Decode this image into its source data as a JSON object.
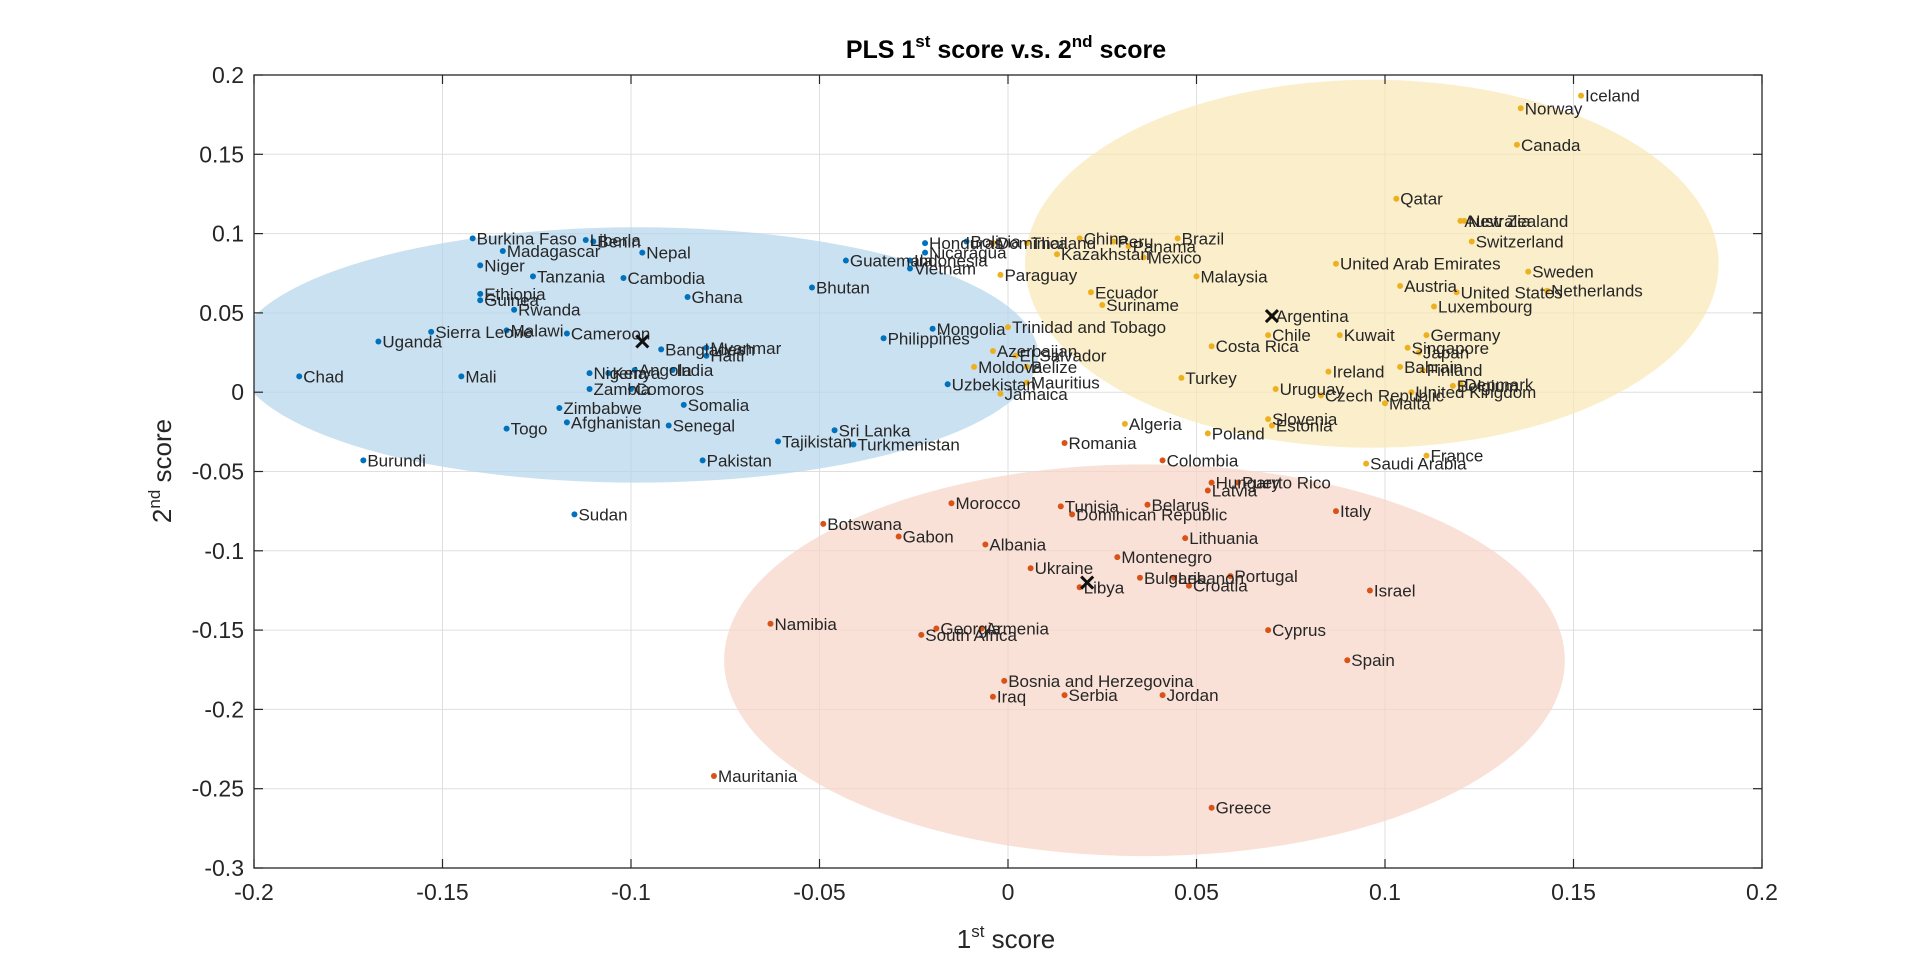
{
  "chart_data": {
    "type": "scatter",
    "title_parts": {
      "pre": "PLS 1",
      "sup1": "st",
      "mid": " score v.s. 2",
      "sup2": "nd",
      "post": " score"
    },
    "xlabel_parts": {
      "pre": "1",
      "sup": "st",
      "post": " score"
    },
    "ylabel_parts": {
      "pre": "2",
      "sup": "nd",
      "post": " score"
    },
    "xlim": [
      -0.2,
      0.2
    ],
    "ylim": [
      -0.3,
      0.2
    ],
    "x_ticks": [
      "-0.2",
      "-0.15",
      "-0.1",
      "-0.05",
      "0",
      "0.05",
      "0.1",
      "0.15",
      "0.2"
    ],
    "y_ticks": [
      "0.2",
      "0.15",
      "0.1",
      "0.05",
      "0",
      "-0.05",
      "-0.1",
      "-0.15",
      "-0.2",
      "-0.25",
      "-0.3"
    ],
    "grid": true,
    "clusters": [
      {
        "color": "#0072bd",
        "ellipse_color": "#b6d6ec",
        "centroid": [
          -0.097,
          0.032
        ],
        "ellipse": {
          "center": [
            -0.0985,
            0.0235
          ],
          "rx": 0.1065,
          "ry": 0.0805
        },
        "points": [
          {
            "label": "Burkina Faso",
            "x": -0.142,
            "y": 0.097
          },
          {
            "label": "Liberia",
            "x": -0.112,
            "y": 0.096
          },
          {
            "label": "Benin",
            "x": -0.11,
            "y": 0.095
          },
          {
            "label": "Madagascar",
            "x": -0.134,
            "y": 0.089
          },
          {
            "label": "Nepal",
            "x": -0.097,
            "y": 0.088
          },
          {
            "label": "Niger",
            "x": -0.14,
            "y": 0.08
          },
          {
            "label": "Tanzania",
            "x": -0.126,
            "y": 0.073
          },
          {
            "label": "Cambodia",
            "x": -0.102,
            "y": 0.072
          },
          {
            "label": "Ethiopia",
            "x": -0.14,
            "y": 0.062
          },
          {
            "label": "Ghana",
            "x": -0.085,
            "y": 0.06
          },
          {
            "label": "Guinea",
            "x": -0.14,
            "y": 0.058
          },
          {
            "label": "Rwanda",
            "x": -0.131,
            "y": 0.052
          },
          {
            "label": "Bhutan",
            "x": -0.052,
            "y": 0.066
          },
          {
            "label": "Malawi",
            "x": -0.133,
            "y": 0.039
          },
          {
            "label": "Sierra Leone",
            "x": -0.153,
            "y": 0.038
          },
          {
            "label": "Cameroon",
            "x": -0.117,
            "y": 0.037
          },
          {
            "label": "Uganda",
            "x": -0.167,
            "y": 0.032
          },
          {
            "label": "Bangladesh",
            "x": -0.092,
            "y": 0.027
          },
          {
            "label": "Myanmar",
            "x": -0.08,
            "y": 0.028
          },
          {
            "label": "Haiti",
            "x": -0.08,
            "y": 0.023
          },
          {
            "label": "Chad",
            "x": -0.188,
            "y": 0.01
          },
          {
            "label": "Mali",
            "x": -0.145,
            "y": 0.01
          },
          {
            "label": "Nigeria",
            "x": -0.111,
            "y": 0.012
          },
          {
            "label": "Kenya",
            "x": -0.106,
            "y": 0.012
          },
          {
            "label": "Angola",
            "x": -0.099,
            "y": 0.014
          },
          {
            "label": "India",
            "x": -0.089,
            "y": 0.014
          },
          {
            "label": "Zambia",
            "x": -0.111,
            "y": 0.002
          },
          {
            "label": "Comoros",
            "x": -0.1,
            "y": 0.002
          },
          {
            "label": "Somalia",
            "x": -0.086,
            "y": -0.008
          },
          {
            "label": "Zimbabwe",
            "x": -0.119,
            "y": -0.01
          },
          {
            "label": "Afghanistan",
            "x": -0.117,
            "y": -0.019
          },
          {
            "label": "Senegal",
            "x": -0.09,
            "y": -0.021
          },
          {
            "label": "Togo",
            "x": -0.133,
            "y": -0.023
          },
          {
            "label": "Burundi",
            "x": -0.171,
            "y": -0.043
          },
          {
            "label": "Pakistan",
            "x": -0.081,
            "y": -0.043
          },
          {
            "label": "Sudan",
            "x": -0.115,
            "y": -0.077
          },
          {
            "label": "Guatemala",
            "x": -0.043,
            "y": 0.083
          },
          {
            "label": "Indonesia",
            "x": -0.026,
            "y": 0.083
          },
          {
            "label": "Vietnam",
            "x": -0.026,
            "y": 0.078
          },
          {
            "label": "Honduras",
            "x": -0.022,
            "y": 0.094
          },
          {
            "label": "Nicaragua",
            "x": -0.022,
            "y": 0.088
          },
          {
            "label": "Bolivia",
            "x": -0.011,
            "y": 0.095
          },
          {
            "label": "Mongolia",
            "x": -0.02,
            "y": 0.04
          },
          {
            "label": "Philippines",
            "x": -0.033,
            "y": 0.034
          },
          {
            "label": "Uzbekistan",
            "x": -0.016,
            "y": 0.005
          },
          {
            "label": "Sri Lanka",
            "x": -0.046,
            "y": -0.024
          },
          {
            "label": "Tajikistan",
            "x": -0.061,
            "y": -0.031
          },
          {
            "label": "Turkmenistan",
            "x": -0.041,
            "y": -0.033
          }
        ]
      },
      {
        "color": "#edb120",
        "ellipse_color": "#f9e7b5",
        "centroid": [
          0.07,
          0.048
        ],
        "ellipse": {
          "center": [
            0.0965,
            0.081
          ],
          "rx": 0.092,
          "ry": 0.116
        },
        "points": [
          {
            "label": "Iceland",
            "x": 0.152,
            "y": 0.187
          },
          {
            "label": "Norway",
            "x": 0.136,
            "y": 0.179
          },
          {
            "label": "Canada",
            "x": 0.135,
            "y": 0.156
          },
          {
            "label": "Qatar",
            "x": 0.103,
            "y": 0.122
          },
          {
            "label": "Australia",
            "x": 0.12,
            "y": 0.108
          },
          {
            "label": "New Zealand",
            "x": 0.121,
            "y": 0.108
          },
          {
            "label": "Switzerland",
            "x": 0.123,
            "y": 0.095
          },
          {
            "label": "United Arab Emirates",
            "x": 0.087,
            "y": 0.081
          },
          {
            "label": "Sweden",
            "x": 0.138,
            "y": 0.076
          },
          {
            "label": "Austria",
            "x": 0.104,
            "y": 0.067
          },
          {
            "label": "United States",
            "x": 0.119,
            "y": 0.063
          },
          {
            "label": "Netherlands",
            "x": 0.143,
            "y": 0.064
          },
          {
            "label": "Luxembourg",
            "x": 0.113,
            "y": 0.054
          },
          {
            "label": "Argentina",
            "x": 0.07,
            "y": 0.048
          },
          {
            "label": "Chile",
            "x": 0.069,
            "y": 0.036
          },
          {
            "label": "Kuwait",
            "x": 0.088,
            "y": 0.036
          },
          {
            "label": "Germany",
            "x": 0.111,
            "y": 0.036
          },
          {
            "label": "Singapore",
            "x": 0.106,
            "y": 0.028
          },
          {
            "label": "Japan",
            "x": 0.109,
            "y": 0.025
          },
          {
            "label": "Ireland",
            "x": 0.085,
            "y": 0.013
          },
          {
            "label": "Bahrain",
            "x": 0.104,
            "y": 0.016
          },
          {
            "label": "Finland",
            "x": 0.11,
            "y": 0.014
          },
          {
            "label": "Belgium",
            "x": 0.118,
            "y": 0.004
          },
          {
            "label": "Denmark",
            "x": 0.12,
            "y": 0.005
          },
          {
            "label": "United Kingdom",
            "x": 0.107,
            "y": 0.0
          },
          {
            "label": "Czech Republic",
            "x": 0.083,
            "y": -0.002
          },
          {
            "label": "Malta",
            "x": 0.1,
            "y": -0.007
          },
          {
            "label": "Uruguay",
            "x": 0.071,
            "y": 0.002
          },
          {
            "label": "France",
            "x": 0.111,
            "y": -0.04
          },
          {
            "label": "Saudi Arabia",
            "x": 0.095,
            "y": -0.045
          },
          {
            "label": "Slovenia",
            "x": 0.069,
            "y": -0.017
          },
          {
            "label": "Estonia",
            "x": 0.07,
            "y": -0.021
          },
          {
            "label": "Poland",
            "x": 0.053,
            "y": -0.026
          },
          {
            "label": "Turkey",
            "x": 0.046,
            "y": 0.009
          },
          {
            "label": "Costa Rica",
            "x": 0.054,
            "y": 0.029
          },
          {
            "label": "Malaysia",
            "x": 0.05,
            "y": 0.073
          },
          {
            "label": "Brazil",
            "x": 0.045,
            "y": 0.097
          },
          {
            "label": "Mexico",
            "x": 0.036,
            "y": 0.085
          },
          {
            "label": "Panama",
            "x": 0.032,
            "y": 0.092
          },
          {
            "label": "Peru",
            "x": 0.028,
            "y": 0.095
          },
          {
            "label": "China",
            "x": 0.019,
            "y": 0.097
          },
          {
            "label": "Thailand",
            "x": 0.005,
            "y": 0.094
          },
          {
            "label": "Kazakhstan",
            "x": 0.013,
            "y": 0.087
          },
          {
            "label": "Dominica",
            "x": -0.004,
            "y": 0.094
          },
          {
            "label": "Paraguay",
            "x": -0.002,
            "y": 0.074
          },
          {
            "label": "Ecuador",
            "x": 0.022,
            "y": 0.063
          },
          {
            "label": "Suriname",
            "x": 0.025,
            "y": 0.055
          },
          {
            "label": "Trinidad and Tobago",
            "x": 0.0,
            "y": 0.041
          },
          {
            "label": "Azerbaijan",
            "x": -0.004,
            "y": 0.026
          },
          {
            "label": "El Salvador",
            "x": 0.002,
            "y": 0.023
          },
          {
            "label": "Moldova",
            "x": -0.009,
            "y": 0.016
          },
          {
            "label": "Belize",
            "x": 0.005,
            "y": 0.016
          },
          {
            "label": "Mauritius",
            "x": 0.005,
            "y": 0.006
          },
          {
            "label": "Jamaica",
            "x": -0.002,
            "y": -0.001
          },
          {
            "label": "Algeria",
            "x": 0.031,
            "y": -0.02
          }
        ]
      },
      {
        "color": "#d95319",
        "ellipse_color": "#f6d5c8",
        "centroid": [
          0.021,
          -0.12
        ],
        "ellipse": {
          "center": [
            0.0362,
            -0.169
          ],
          "rx": 0.1115,
          "ry": 0.1235
        },
        "points": [
          {
            "label": "Romania",
            "x": 0.015,
            "y": -0.032
          },
          {
            "label": "Colombia",
            "x": 0.041,
            "y": -0.043
          },
          {
            "label": "Hungary",
            "x": 0.054,
            "y": -0.057
          },
          {
            "label": "Puerto Rico",
            "x": 0.061,
            "y": -0.057
          },
          {
            "label": "Latvia",
            "x": 0.053,
            "y": -0.062
          },
          {
            "label": "Italy",
            "x": 0.087,
            "y": -0.075
          },
          {
            "label": "Morocco",
            "x": -0.015,
            "y": -0.07
          },
          {
            "label": "Tunisia",
            "x": 0.014,
            "y": -0.072
          },
          {
            "label": "Dominican Republic",
            "x": 0.017,
            "y": -0.077
          },
          {
            "label": "Belarus",
            "x": 0.037,
            "y": -0.071
          },
          {
            "label": "Botswana",
            "x": -0.049,
            "y": -0.083
          },
          {
            "label": "Gabon",
            "x": -0.029,
            "y": -0.091
          },
          {
            "label": "Albania",
            "x": -0.006,
            "y": -0.096
          },
          {
            "label": "Lithuania",
            "x": 0.047,
            "y": -0.092
          },
          {
            "label": "Montenegro",
            "x": 0.029,
            "y": -0.104
          },
          {
            "label": "Ukraine",
            "x": 0.006,
            "y": -0.111
          },
          {
            "label": "Bulgaria",
            "x": 0.035,
            "y": -0.117
          },
          {
            "label": "Lebanon",
            "x": 0.044,
            "y": -0.117
          },
          {
            "label": "Portugal",
            "x": 0.059,
            "y": -0.116
          },
          {
            "label": "Croatia",
            "x": 0.048,
            "y": -0.122
          },
          {
            "label": "Libya",
            "x": 0.019,
            "y": -0.123
          },
          {
            "label": "Israel",
            "x": 0.096,
            "y": -0.125
          },
          {
            "label": "Namibia",
            "x": -0.063,
            "y": -0.146
          },
          {
            "label": "Georgia",
            "x": -0.019,
            "y": -0.149
          },
          {
            "label": "Armenia",
            "x": -0.007,
            "y": -0.149
          },
          {
            "label": "South Africa",
            "x": -0.023,
            "y": -0.153
          },
          {
            "label": "Cyprus",
            "x": 0.069,
            "y": -0.15
          },
          {
            "label": "Spain",
            "x": 0.09,
            "y": -0.169
          },
          {
            "label": "Bosnia and Herzegovina",
            "x": -0.001,
            "y": -0.182
          },
          {
            "label": "Iraq",
            "x": -0.004,
            "y": -0.192
          },
          {
            "label": "Serbia",
            "x": 0.015,
            "y": -0.191
          },
          {
            "label": "Jordan",
            "x": 0.041,
            "y": -0.191
          },
          {
            "label": "Mauritania",
            "x": -0.078,
            "y": -0.242
          },
          {
            "label": "Greece",
            "x": 0.054,
            "y": -0.262
          }
        ]
      }
    ]
  }
}
